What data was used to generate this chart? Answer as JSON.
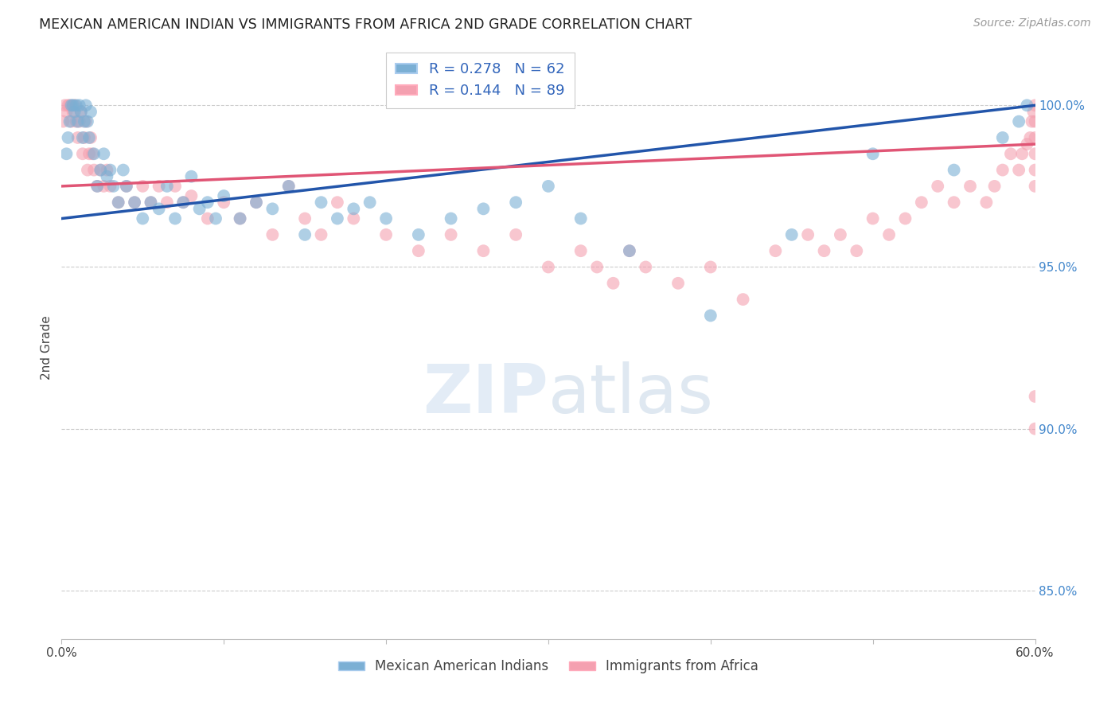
{
  "title": "MEXICAN AMERICAN INDIAN VS IMMIGRANTS FROM AFRICA 2ND GRADE CORRELATION CHART",
  "source": "Source: ZipAtlas.com",
  "ylabel": "2nd Grade",
  "ylabel_right_labels": [
    "85.0%",
    "90.0%",
    "95.0%",
    "100.0%"
  ],
  "ylabel_right_values": [
    85.0,
    90.0,
    95.0,
    100.0
  ],
  "legend_blue_label": "R = 0.278   N = 62",
  "legend_pink_label": "R = 0.144   N = 89",
  "legend_bottom_blue": "Mexican American Indians",
  "legend_bottom_pink": "Immigrants from Africa",
  "blue_color": "#7BAFD4",
  "pink_color": "#F4A0B0",
  "blue_line_color": "#2255AA",
  "pink_line_color": "#E05575",
  "xmin": 0.0,
  "xmax": 60.0,
  "ymin": 83.5,
  "ymax": 101.5,
  "blue_line_x0": 0.0,
  "blue_line_y0": 96.5,
  "blue_line_x1": 60.0,
  "blue_line_y1": 100.0,
  "pink_line_x0": 0.0,
  "pink_line_y0": 97.5,
  "pink_line_x1": 60.0,
  "pink_line_y1": 98.8,
  "blue_scatter_x": [
    0.3,
    0.4,
    0.5,
    0.6,
    0.7,
    0.8,
    0.9,
    1.0,
    1.1,
    1.2,
    1.3,
    1.4,
    1.5,
    1.6,
    1.7,
    1.8,
    2.0,
    2.2,
    2.4,
    2.6,
    2.8,
    3.0,
    3.2,
    3.5,
    3.8,
    4.0,
    4.5,
    5.0,
    5.5,
    6.0,
    6.5,
    7.0,
    7.5,
    8.0,
    8.5,
    9.0,
    9.5,
    10.0,
    11.0,
    12.0,
    13.0,
    14.0,
    15.0,
    16.0,
    17.0,
    18.0,
    19.0,
    20.0,
    22.0,
    24.0,
    26.0,
    28.0,
    30.0,
    32.0,
    35.0,
    40.0,
    45.0,
    50.0,
    55.0,
    58.0,
    59.0,
    59.5
  ],
  "blue_scatter_y": [
    98.5,
    99.0,
    99.5,
    100.0,
    100.0,
    99.8,
    100.0,
    99.5,
    100.0,
    99.8,
    99.0,
    99.5,
    100.0,
    99.5,
    99.0,
    99.8,
    98.5,
    97.5,
    98.0,
    98.5,
    97.8,
    98.0,
    97.5,
    97.0,
    98.0,
    97.5,
    97.0,
    96.5,
    97.0,
    96.8,
    97.5,
    96.5,
    97.0,
    97.8,
    96.8,
    97.0,
    96.5,
    97.2,
    96.5,
    97.0,
    96.8,
    97.5,
    96.0,
    97.0,
    96.5,
    96.8,
    97.0,
    96.5,
    96.0,
    96.5,
    96.8,
    97.0,
    97.5,
    96.5,
    95.5,
    93.5,
    96.0,
    98.5,
    98.0,
    99.0,
    99.5,
    100.0
  ],
  "pink_scatter_x": [
    0.1,
    0.2,
    0.3,
    0.4,
    0.5,
    0.6,
    0.7,
    0.8,
    0.9,
    1.0,
    1.1,
    1.2,
    1.3,
    1.4,
    1.5,
    1.6,
    1.7,
    1.8,
    1.9,
    2.0,
    2.2,
    2.4,
    2.6,
    2.8,
    3.0,
    3.5,
    4.0,
    4.5,
    5.0,
    5.5,
    6.0,
    6.5,
    7.0,
    7.5,
    8.0,
    9.0,
    10.0,
    11.0,
    12.0,
    13.0,
    14.0,
    15.0,
    16.0,
    17.0,
    18.0,
    20.0,
    22.0,
    24.0,
    26.0,
    28.0,
    30.0,
    32.0,
    33.0,
    34.0,
    35.0,
    36.0,
    38.0,
    40.0,
    42.0,
    44.0,
    46.0,
    47.0,
    48.0,
    49.0,
    50.0,
    51.0,
    52.0,
    53.0,
    54.0,
    55.0,
    56.0,
    57.0,
    57.5,
    58.0,
    58.5,
    59.0,
    59.2,
    59.5,
    59.7,
    59.8,
    59.9,
    60.0,
    60.0,
    60.0,
    60.0,
    60.0,
    60.0,
    60.0,
    60.0
  ],
  "pink_scatter_y": [
    99.5,
    100.0,
    99.8,
    100.0,
    100.0,
    99.5,
    99.8,
    100.0,
    99.5,
    99.0,
    99.5,
    99.8,
    98.5,
    99.0,
    99.5,
    98.0,
    98.5,
    99.0,
    98.5,
    98.0,
    97.5,
    98.0,
    97.5,
    98.0,
    97.5,
    97.0,
    97.5,
    97.0,
    97.5,
    97.0,
    97.5,
    97.0,
    97.5,
    97.0,
    97.2,
    96.5,
    97.0,
    96.5,
    97.0,
    96.0,
    97.5,
    96.5,
    96.0,
    97.0,
    96.5,
    96.0,
    95.5,
    96.0,
    95.5,
    96.0,
    95.0,
    95.5,
    95.0,
    94.5,
    95.5,
    95.0,
    94.5,
    95.0,
    94.0,
    95.5,
    96.0,
    95.5,
    96.0,
    95.5,
    96.5,
    96.0,
    96.5,
    97.0,
    97.5,
    97.0,
    97.5,
    97.0,
    97.5,
    98.0,
    98.5,
    98.0,
    98.5,
    98.8,
    99.0,
    99.5,
    99.8,
    100.0,
    99.5,
    99.0,
    98.5,
    98.0,
    97.5,
    91.0,
    90.0
  ]
}
